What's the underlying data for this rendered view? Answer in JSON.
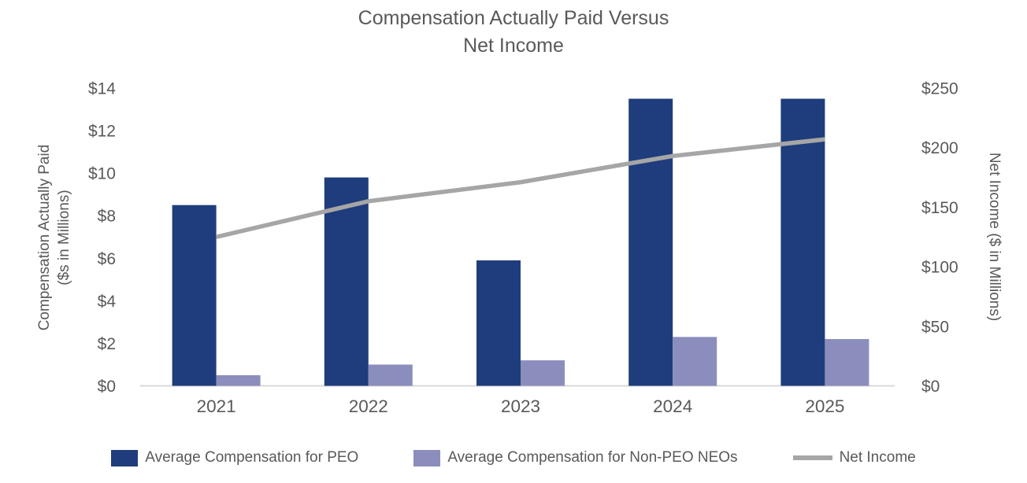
{
  "chart_data": {
    "type": "combo",
    "title": {
      "line1": "Compensation Actually Paid Versus",
      "line2": "Net Income"
    },
    "categories": [
      "2021",
      "2022",
      "2023",
      "2024",
      "2025"
    ],
    "series": [
      {
        "name": "Average Compensation for PEO",
        "type": "bar",
        "axis": "left",
        "color": "#1F3D7C",
        "values": [
          8.5,
          9.8,
          5.9,
          13.5,
          13.5
        ]
      },
      {
        "name": "Average Compensation for Non-PEO NEOs",
        "type": "bar",
        "axis": "left",
        "color": "#8B8EBC",
        "values": [
          0.5,
          1.0,
          1.2,
          2.3,
          2.2
        ]
      },
      {
        "name": "Net Income",
        "type": "line",
        "axis": "right",
        "color": "#A6A6A6",
        "values": [
          125,
          155,
          171,
          193,
          207
        ]
      }
    ],
    "left_axis": {
      "label_line1": "Compensation Actually Paid",
      "label_line2": "($s in Millions)",
      "min": 0,
      "max": 14,
      "ticks": [
        {
          "label": "$0",
          "value": 0
        },
        {
          "label": "$2",
          "value": 2
        },
        {
          "label": "$4",
          "value": 4
        },
        {
          "label": "$6",
          "value": 6
        },
        {
          "label": "$8",
          "value": 8
        },
        {
          "label": "$10",
          "value": 10
        },
        {
          "label": "$12",
          "value": 12
        },
        {
          "label": "$14",
          "value": 14
        }
      ]
    },
    "right_axis": {
      "label": "Net Income ($ in Millions)",
      "min": 0,
      "max": 250,
      "ticks": [
        {
          "label": "$0",
          "value": 0
        },
        {
          "label": "$50",
          "value": 50
        },
        {
          "label": "$100",
          "value": 100
        },
        {
          "label": "$150",
          "value": 150
        },
        {
          "label": "$200",
          "value": 200
        },
        {
          "label": "$250",
          "value": 250
        }
      ]
    },
    "legend_position": "bottom",
    "grid": false
  },
  "colors": {
    "text": "#595959",
    "axis_line": "#D9D9D9",
    "background": "#FFFFFF"
  }
}
